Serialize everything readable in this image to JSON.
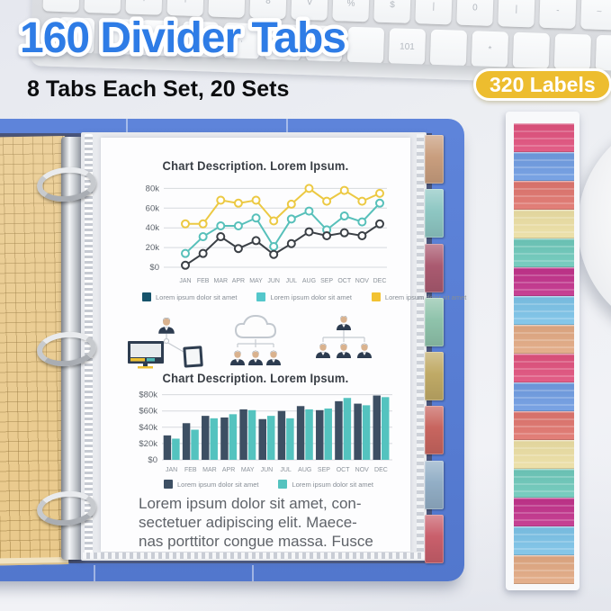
{
  "header": {
    "title": "160 Divider Tabs",
    "subtitle": "8 Tabs Each Set, 20 Sets",
    "badge": "320 Labels"
  },
  "colors": {
    "headline_blue": "#2e7ce6",
    "badge_gold": "#edbd2f",
    "binder_blue": "#5b80d6",
    "paper_yellow": "#e9c98b"
  },
  "keyboard": {
    "rows": [
      [
        "+",
        "-",
        "|",
        "|",
        "*",
        "8",
        "v",
        "%",
        "$",
        "|",
        "0",
        "|",
        "-",
        "~"
      ],
      [
        "",
        "",
        "",
        "",
        "·",
        "",
        "·",
        "",
        "101",
        "",
        "*",
        "",
        "",
        ""
      ]
    ]
  },
  "page": {
    "paragraph_lines": [
      "Lorem ipsum dolor sit amet, con-",
      "sectetuer adipiscing elit. Maece-",
      "nas porttitor congue massa. Fusce"
    ]
  },
  "icons": [
    {
      "name": "person-devices-icon"
    },
    {
      "name": "cloud-team-icon"
    },
    {
      "name": "org-chart-icon"
    }
  ],
  "chart_data": [
    {
      "type": "line",
      "title": "Chart Description. Lorem Ipsum.",
      "categories": [
        "JAN",
        "FEB",
        "MAR",
        "APR",
        "MAY",
        "JUN",
        "JUL",
        "AUG",
        "SEP",
        "OCT",
        "NOV",
        "DEC"
      ],
      "y_ticks": [
        {
          "label": "80k",
          "value": 80
        },
        {
          "label": "60k",
          "value": 60
        },
        {
          "label": "40k",
          "value": 40
        },
        {
          "label": "20k",
          "value": 20
        },
        {
          "label": "$0",
          "value": 0
        }
      ],
      "ylim": [
        0,
        84
      ],
      "grid": true,
      "legend_position": "bottom",
      "series": [
        {
          "name": "Lorem ipsum dolor sit amet",
          "color": "#ecc943",
          "values": [
            44,
            44,
            68,
            65,
            68,
            47,
            64,
            80,
            67,
            78,
            67,
            75
          ]
        },
        {
          "name": "Lorem ipsum dolor sit amet",
          "color": "#57c0ba",
          "values": [
            14,
            31,
            42,
            42,
            50,
            21,
            49,
            57,
            38,
            52,
            46,
            65
          ]
        },
        {
          "name": "Lorem ipsum dolor sit amet",
          "color": "#3b4046",
          "values": [
            2,
            14,
            31,
            19,
            27,
            13,
            24,
            36,
            32,
            35,
            32,
            44
          ]
        }
      ],
      "legend": [
        {
          "label": "Lorem ipsum dolor sit amet",
          "color": "#16536b"
        },
        {
          "label": "Lorem ipsum dolor sit amet",
          "color": "#54c7cb"
        },
        {
          "label": "Lorem ipsum dolor sit amet",
          "color": "#f2c232"
        }
      ]
    },
    {
      "type": "bar",
      "title": "Chart Description. Lorem Ipsum.",
      "categories": [
        "JAN",
        "FEB",
        "MAR",
        "APR",
        "MAY",
        "JUN",
        "JUL",
        "AUG",
        "SEP",
        "OCT",
        "NOV",
        "DEC"
      ],
      "y_ticks": [
        {
          "label": "$80k",
          "value": 80
        },
        {
          "label": "$60k",
          "value": 60
        },
        {
          "label": "$40k",
          "value": 40
        },
        {
          "label": "$20k",
          "value": 20
        },
        {
          "label": "$0",
          "value": 0
        }
      ],
      "ylim": [
        0,
        84
      ],
      "grid": true,
      "legend_position": "bottom",
      "series": [
        {
          "name": "Lorem ipsum dolor sit amet",
          "color": "#3d4f63",
          "values": [
            30,
            45,
            54,
            52,
            62,
            50,
            60,
            66,
            61,
            72,
            69,
            79
          ]
        },
        {
          "name": "Lorem ipsum dolor sit amet",
          "color": "#54c3bf",
          "values": [
            26,
            37,
            51,
            56,
            61,
            54,
            51,
            62,
            63,
            76,
            67,
            77
          ]
        }
      ],
      "legend": [
        {
          "label": "Lorem ipsum dolor sit amet",
          "color": "#3d4f63"
        },
        {
          "label": "Lorem ipsum dolor sit amet",
          "color": "#54c3bf"
        }
      ]
    }
  ],
  "binder": {
    "side_tab_colors": [
      "#c99e7e",
      "#8ec7c3",
      "#aa5a70",
      "#8fc3ab",
      "#c0aa66",
      "#c8655f",
      "#92aec6",
      "#c95f6b"
    ]
  },
  "label_strip": {
    "sets": 2,
    "colors": [
      "#e0517d",
      "#6f9ce2",
      "#e0756e",
      "#ecdfa4",
      "#6ec9bb",
      "#c2328b",
      "#7cc3e8",
      "#e2a983"
    ]
  }
}
